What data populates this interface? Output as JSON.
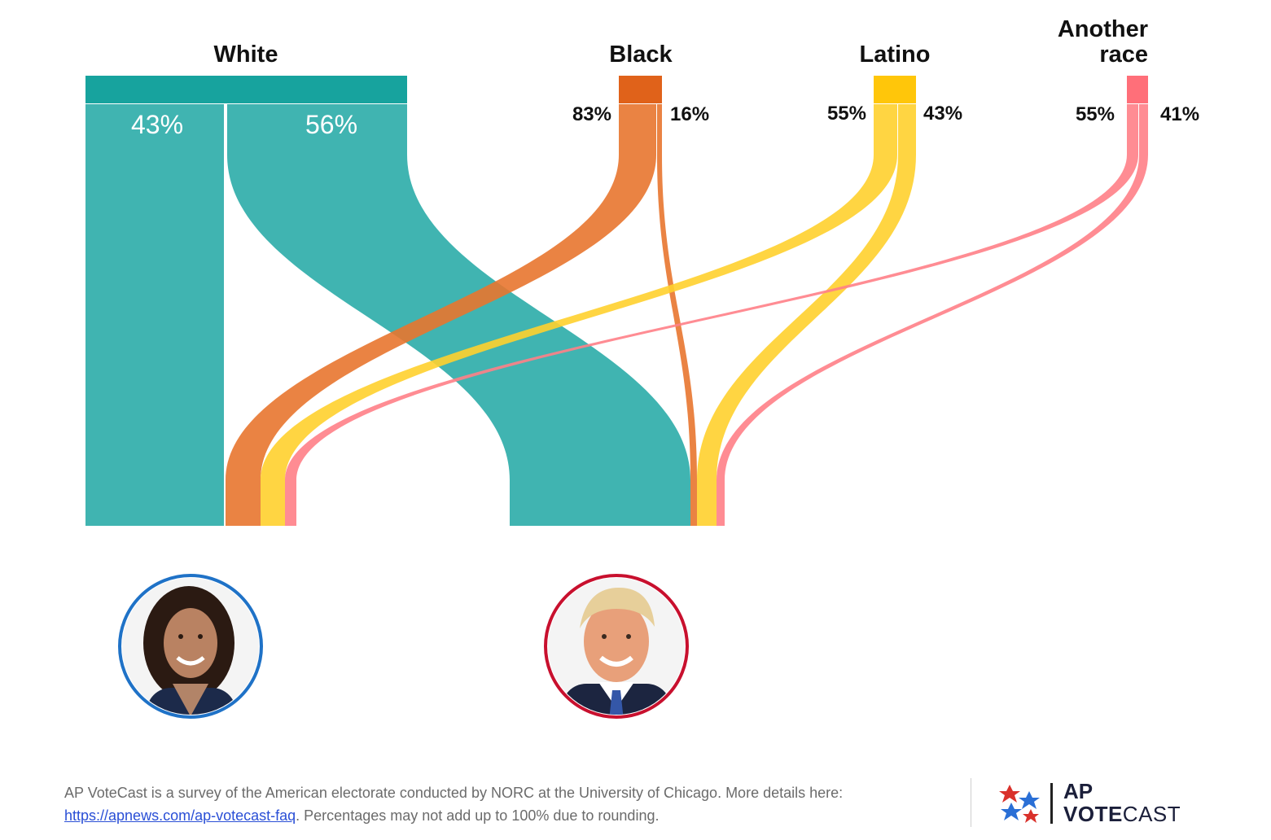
{
  "chart_data": {
    "type": "sankey",
    "groups": [
      {
        "name": "White",
        "harris": "43%",
        "trump": "56%",
        "color": "#17a39e",
        "flow_color": "#1ea7a3"
      },
      {
        "name": "Black",
        "harris": "83%",
        "trump": "16%",
        "color": "#e0621a",
        "flow_color": "#e8762f"
      },
      {
        "name": "Latino",
        "harris": "55%",
        "trump": "43%",
        "color": "#ffc60a",
        "flow_color": "#ffd02e"
      },
      {
        "name_line1": "Another",
        "name_line2": "race",
        "harris": "55%",
        "trump": "41%",
        "color": "#ff6f79",
        "flow_color": "#ff7f87"
      }
    ],
    "targets": [
      {
        "name": "Harris",
        "ring_color": "#1f72c7"
      },
      {
        "name": "Trump",
        "ring_color": "#c8102e"
      }
    ]
  },
  "footer": {
    "note": "AP VoteCast is a survey of the American electorate conducted by NORC at the University of Chicago. More details here:",
    "link": "https://apnews.com/ap-votecast-faq",
    "note2": ". Percentages may not add up to 100% due to rounding."
  },
  "logo": {
    "line1": "AP",
    "line2a": "VOTE",
    "line2b": "CAST"
  }
}
